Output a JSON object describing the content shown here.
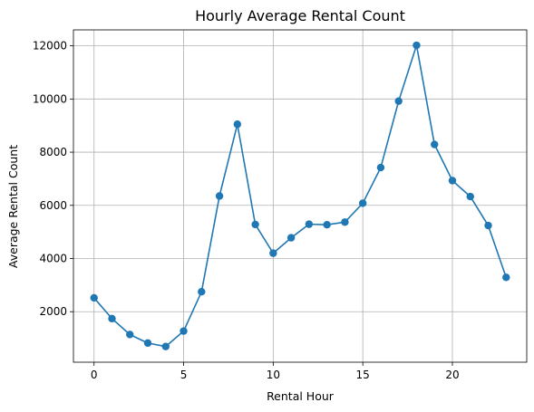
{
  "chart_data": {
    "type": "line",
    "title": "Hourly Average Rental Count",
    "xlabel": "Rental Hour",
    "ylabel": "Average Rental Count",
    "xlim": [
      -1.15,
      24.15
    ],
    "ylim": [
      100,
      12600
    ],
    "xticks": [
      0,
      5,
      10,
      15,
      20
    ],
    "yticks": [
      2000,
      4000,
      6000,
      8000,
      10000,
      12000
    ],
    "grid": true,
    "series": [
      {
        "color": "#1f77b4",
        "marker": "circle",
        "x": [
          0,
          1,
          2,
          3,
          4,
          5,
          6,
          7,
          8,
          9,
          10,
          11,
          12,
          13,
          14,
          15,
          16,
          17,
          18,
          19,
          20,
          21,
          22,
          23
        ],
        "y": [
          2520,
          1740,
          1140,
          820,
          690,
          1270,
          2750,
          6350,
          9050,
          5280,
          4200,
          4780,
          5290,
          5270,
          5370,
          6080,
          7420,
          9920,
          12020,
          8290,
          6930,
          6330,
          5240,
          3290
        ]
      }
    ]
  }
}
